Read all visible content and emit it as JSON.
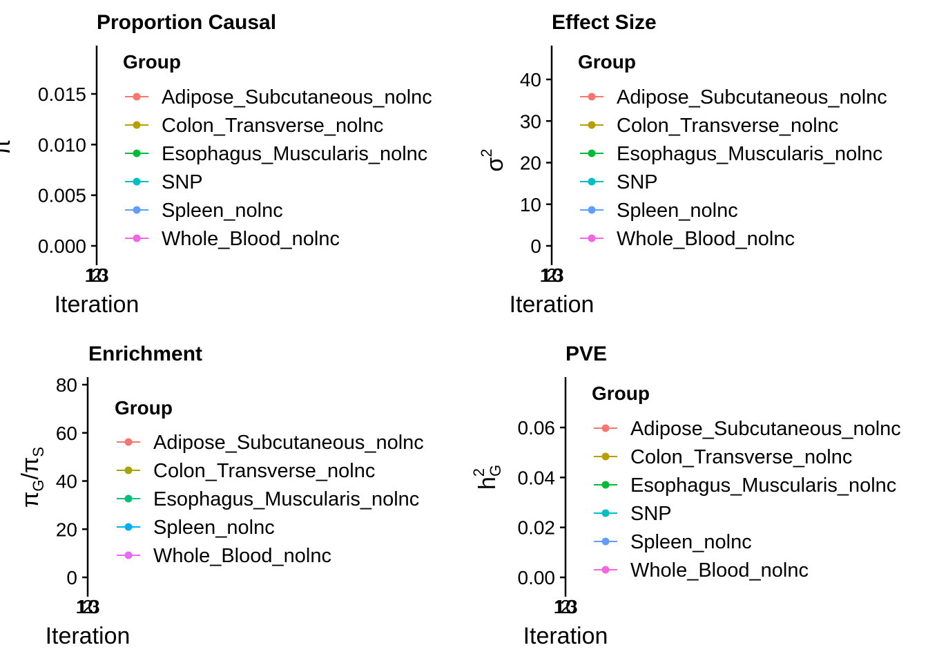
{
  "chart_data": [
    {
      "type": "line",
      "title": "Proportion Causal",
      "xlabel": "Iteration",
      "ylabel": "π",
      "ylabel_sub": "",
      "ylabel_sup": "",
      "x_ticks": [
        "1",
        "2",
        "3",
        "10"
      ],
      "y_ticks": [
        "0.000",
        "0.005",
        "0.010",
        "0.015"
      ],
      "ylim": [
        -0.001,
        0.0195
      ],
      "legend_title": "Group",
      "legend_position": "right",
      "series": [
        {
          "name": "Adipose_Subcutaneous_nolnc",
          "color": "#F8766D"
        },
        {
          "name": "Colon_Transverse_nolnc",
          "color": "#B79F00"
        },
        {
          "name": "Esophagus_Muscularis_nolnc",
          "color": "#00BA38"
        },
        {
          "name": "SNP",
          "color": "#00BFC4"
        },
        {
          "name": "Spleen_nolnc",
          "color": "#619CFF"
        },
        {
          "name": "Whole_Blood_nolnc",
          "color": "#F564E3"
        }
      ]
    },
    {
      "type": "line",
      "title": "Effect Size",
      "xlabel": "Iteration",
      "ylabel": "σ",
      "ylabel_sub": "",
      "ylabel_sup": "2",
      "x_ticks": [
        "1",
        "2",
        "3",
        "10"
      ],
      "y_ticks": [
        "0",
        "10",
        "20",
        "30",
        "40"
      ],
      "ylim": [
        -2.5,
        48.5
      ],
      "legend_title": "Group",
      "legend_position": "right",
      "series": [
        {
          "name": "Adipose_Subcutaneous_nolnc",
          "color": "#F8766D"
        },
        {
          "name": "Colon_Transverse_nolnc",
          "color": "#B79F00"
        },
        {
          "name": "Esophagus_Muscularis_nolnc",
          "color": "#00BA38"
        },
        {
          "name": "SNP",
          "color": "#00BFC4"
        },
        {
          "name": "Spleen_nolnc",
          "color": "#619CFF"
        },
        {
          "name": "Whole_Blood_nolnc",
          "color": "#F564E3"
        }
      ]
    },
    {
      "type": "line",
      "title": "Enrichment",
      "xlabel": "Iteration",
      "ylabel": "π",
      "ylabel_sub": "G",
      "ylabel_sup": "",
      "ylabel_denominator": "π",
      "ylabel_denominator_sub": "S",
      "x_ticks": [
        "1",
        "2",
        "3",
        "10"
      ],
      "y_ticks": [
        "0",
        "20",
        "40",
        "60",
        "80"
      ],
      "ylim": [
        -4,
        83
      ],
      "legend_title": "Group",
      "legend_position": "right",
      "series": [
        {
          "name": "Adipose_Subcutaneous_nolnc",
          "color": "#F8766D"
        },
        {
          "name": "Colon_Transverse_nolnc",
          "color": "#A3A500"
        },
        {
          "name": "Esophagus_Muscularis_nolnc",
          "color": "#00BF7D"
        },
        {
          "name": "Spleen_nolnc",
          "color": "#00B0F6"
        },
        {
          "name": "Whole_Blood_nolnc",
          "color": "#E76BF3"
        }
      ]
    },
    {
      "type": "line",
      "title": "PVE",
      "xlabel": "Iteration",
      "ylabel": "h",
      "ylabel_sub": "G",
      "ylabel_sup": "2",
      "x_ticks": [
        "1",
        "2",
        "3",
        "10"
      ],
      "y_ticks": [
        "0.00",
        "0.02",
        "0.04",
        "0.06"
      ],
      "ylim": [
        -0.004,
        0.0805
      ],
      "legend_title": "Group",
      "legend_position": "right",
      "series": [
        {
          "name": "Adipose_Subcutaneous_nolnc",
          "color": "#F8766D"
        },
        {
          "name": "Colon_Transverse_nolnc",
          "color": "#B79F00"
        },
        {
          "name": "Esophagus_Muscularis_nolnc",
          "color": "#00BA38"
        },
        {
          "name": "SNP",
          "color": "#00BFC4"
        },
        {
          "name": "Spleen_nolnc",
          "color": "#619CFF"
        },
        {
          "name": "Whole_Blood_nolnc",
          "color": "#F564E3"
        }
      ]
    }
  ]
}
